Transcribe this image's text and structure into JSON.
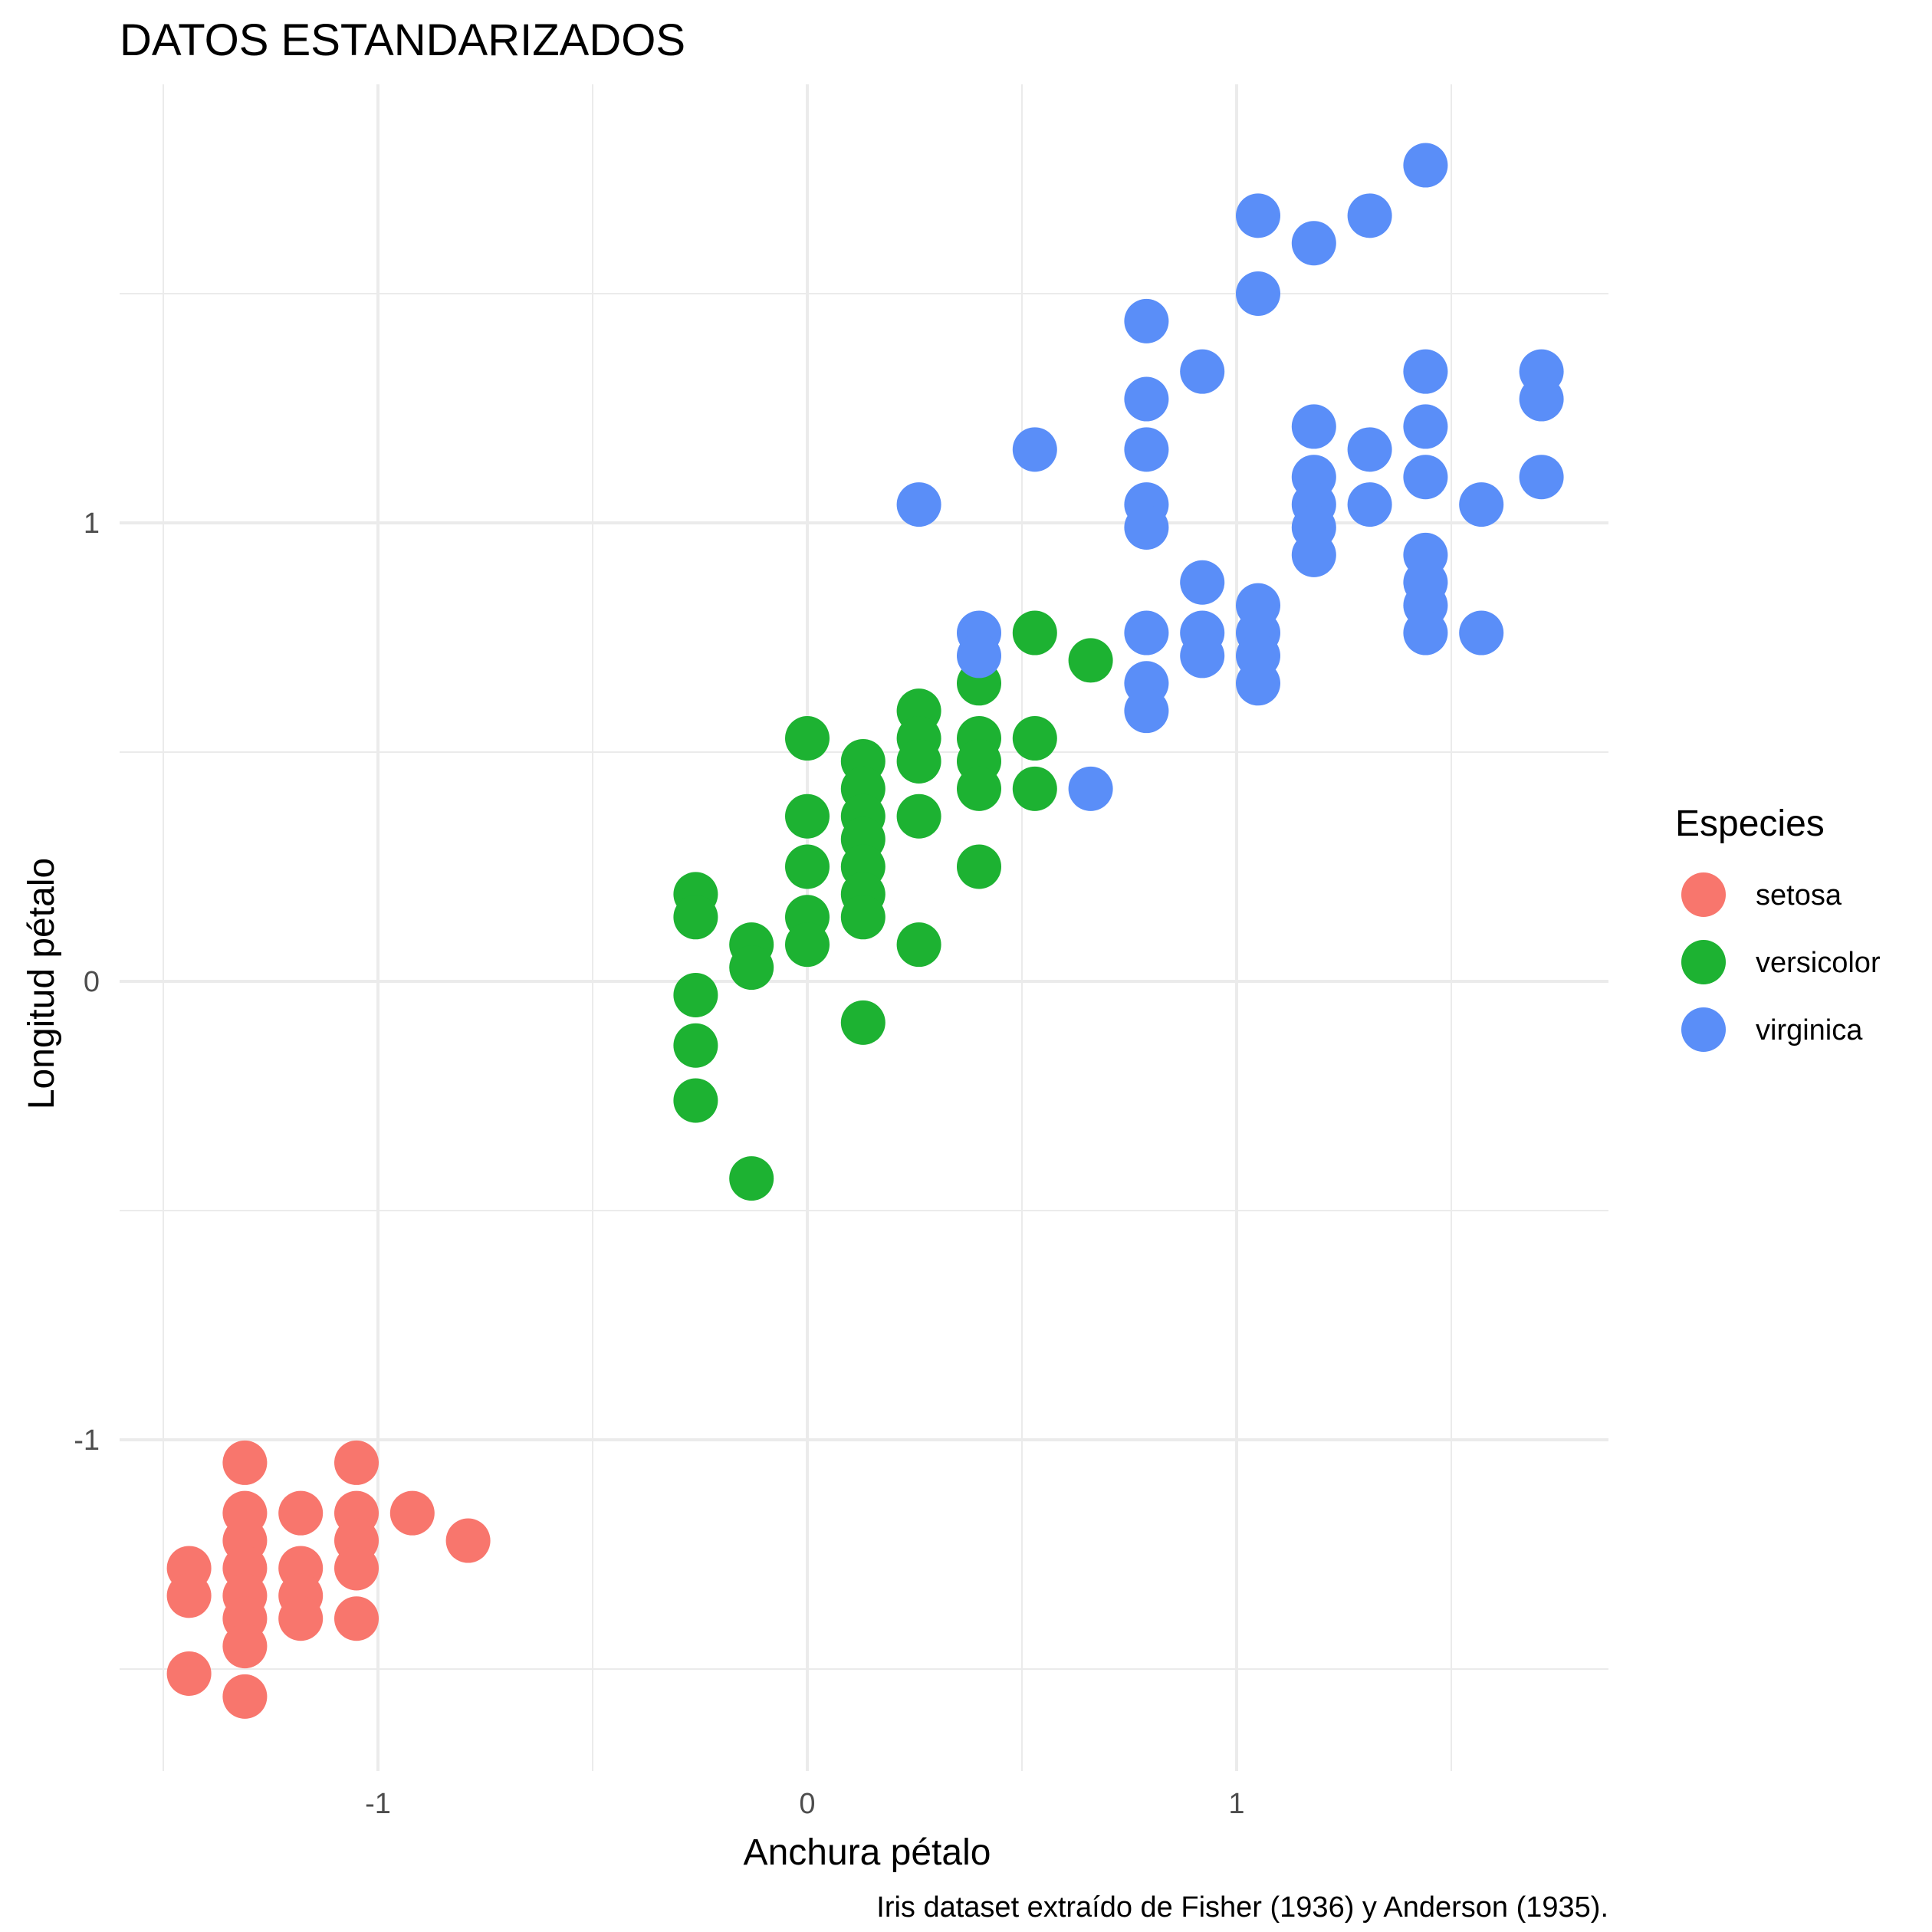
{
  "chart_data": {
    "type": "scatter",
    "title": "DATOS ESTANDARIZADOS",
    "xlabel": "Anchura pétalo",
    "ylabel": "Longitud pétalo",
    "caption": "Iris dataset extraído de Fisher (1936) y Anderson (1935).",
    "xlim": [
      -1.5,
      1.8
    ],
    "ylim": [
      -1.7,
      1.8
    ],
    "x_ticks": [
      -1,
      0,
      1
    ],
    "y_ticks": [
      -1,
      0,
      1
    ],
    "x_tick_labels": [
      "-1",
      "0",
      "1"
    ],
    "y_tick_labels": [
      "-1",
      "0",
      "1"
    ],
    "grid": true,
    "legend": {
      "title": "Especies",
      "position": "right"
    },
    "series": [
      {
        "name": "setosa",
        "color": "#f8766d",
        "points": [
          [
            -1.31,
            -1.05
          ],
          [
            -1.05,
            -1.05
          ],
          [
            -1.31,
            -1.16
          ],
          [
            -1.18,
            -1.16
          ],
          [
            -1.05,
            -1.16
          ],
          [
            -0.92,
            -1.16
          ],
          [
            -1.31,
            -1.22
          ],
          [
            -1.05,
            -1.22
          ],
          [
            -0.79,
            -1.22
          ],
          [
            -1.44,
            -1.28
          ],
          [
            -1.31,
            -1.28
          ],
          [
            -1.18,
            -1.28
          ],
          [
            -1.05,
            -1.28
          ],
          [
            -1.44,
            -1.34
          ],
          [
            -1.31,
            -1.34
          ],
          [
            -1.18,
            -1.34
          ],
          [
            -1.31,
            -1.39
          ],
          [
            -1.18,
            -1.39
          ],
          [
            -1.05,
            -1.39
          ],
          [
            -1.31,
            -1.45
          ],
          [
            -1.44,
            -1.51
          ],
          [
            -1.31,
            -1.56
          ]
        ]
      },
      {
        "name": "versicolor",
        "color": "#1db232",
        "points": [
          [
            -0.26,
            0.19
          ],
          [
            -0.26,
            0.14
          ],
          [
            -0.26,
            -0.03
          ],
          [
            -0.26,
            -0.14
          ],
          [
            -0.26,
            -0.26
          ],
          [
            -0.13,
            0.08
          ],
          [
            -0.13,
            0.03
          ],
          [
            -0.13,
            -0.43
          ],
          [
            0.0,
            0.53
          ],
          [
            0.0,
            0.36
          ],
          [
            0.0,
            0.25
          ],
          [
            0.0,
            0.14
          ],
          [
            0.0,
            0.08
          ],
          [
            0.13,
            0.48
          ],
          [
            0.13,
            0.42
          ],
          [
            0.13,
            0.36
          ],
          [
            0.13,
            0.31
          ],
          [
            0.13,
            0.25
          ],
          [
            0.13,
            0.19
          ],
          [
            0.13,
            0.14
          ],
          [
            0.13,
            -0.09
          ],
          [
            0.26,
            0.59
          ],
          [
            0.26,
            0.53
          ],
          [
            0.26,
            0.48
          ],
          [
            0.26,
            0.36
          ],
          [
            0.26,
            0.08
          ],
          [
            0.4,
            0.65
          ],
          [
            0.4,
            0.53
          ],
          [
            0.4,
            0.48
          ],
          [
            0.4,
            0.42
          ],
          [
            0.4,
            0.25
          ],
          [
            0.53,
            0.76
          ],
          [
            0.53,
            0.53
          ],
          [
            0.53,
            0.42
          ],
          [
            0.66,
            0.7
          ]
        ]
      },
      {
        "name": "virginica",
        "color": "#5a8ef8",
        "points": [
          [
            0.26,
            1.04
          ],
          [
            0.4,
            0.76
          ],
          [
            0.4,
            0.71
          ],
          [
            0.53,
            1.16
          ],
          [
            0.66,
            0.42
          ],
          [
            0.79,
            1.44
          ],
          [
            0.79,
            1.27
          ],
          [
            0.79,
            1.16
          ],
          [
            0.79,
            1.04
          ],
          [
            0.79,
            0.99
          ],
          [
            0.79,
            0.76
          ],
          [
            0.79,
            0.65
          ],
          [
            0.79,
            0.59
          ],
          [
            0.92,
            1.33
          ],
          [
            0.92,
            0.87
          ],
          [
            0.92,
            0.76
          ],
          [
            0.92,
            0.71
          ],
          [
            1.05,
            1.67
          ],
          [
            1.05,
            1.5
          ],
          [
            1.05,
            0.82
          ],
          [
            1.05,
            0.76
          ],
          [
            1.05,
            0.71
          ],
          [
            1.05,
            0.65
          ],
          [
            1.18,
            1.61
          ],
          [
            1.18,
            1.21
          ],
          [
            1.18,
            1.1
          ],
          [
            1.18,
            1.04
          ],
          [
            1.18,
            0.99
          ],
          [
            1.18,
            0.93
          ],
          [
            1.31,
            1.67
          ],
          [
            1.31,
            1.16
          ],
          [
            1.31,
            1.04
          ],
          [
            1.44,
            1.78
          ],
          [
            1.44,
            1.33
          ],
          [
            1.44,
            1.21
          ],
          [
            1.44,
            1.1
          ],
          [
            1.44,
            0.93
          ],
          [
            1.44,
            0.87
          ],
          [
            1.44,
            0.82
          ],
          [
            1.44,
            0.76
          ],
          [
            1.57,
            1.04
          ],
          [
            1.57,
            0.76
          ],
          [
            1.71,
            1.33
          ],
          [
            1.71,
            1.27
          ],
          [
            1.71,
            1.1
          ]
        ]
      }
    ]
  }
}
